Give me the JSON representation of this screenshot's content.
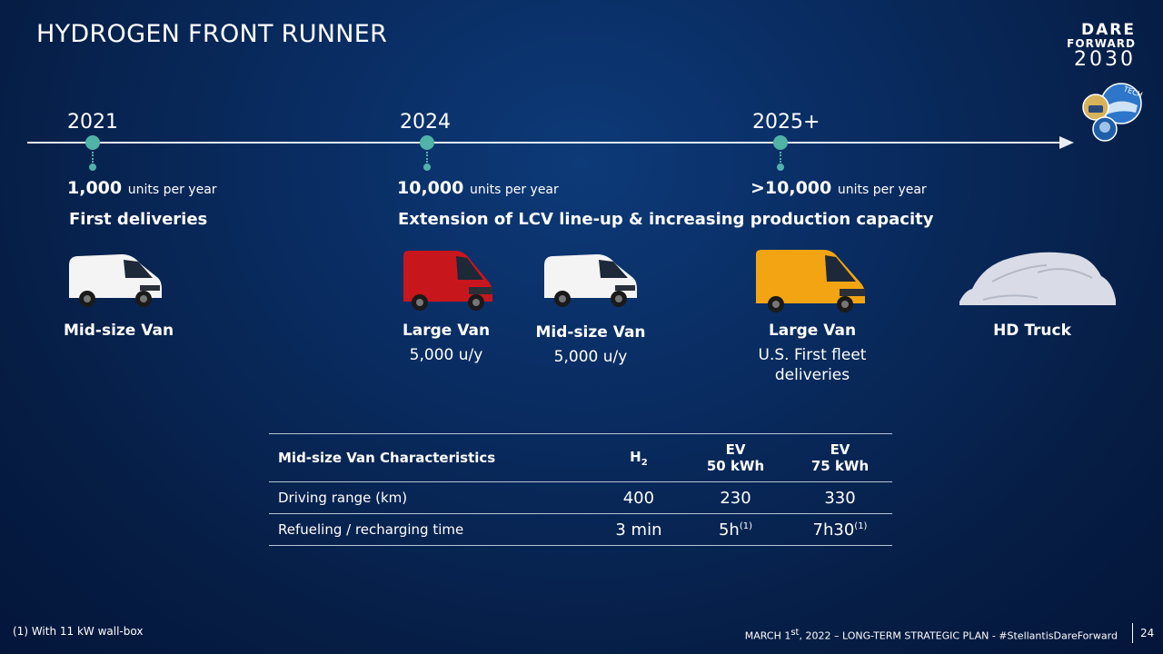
{
  "title": "HYDROGEN FRONT RUNNER",
  "logo": {
    "line1": "DARE",
    "line2": "FORWARD",
    "line3": "2030",
    "badge_text": "TECH"
  },
  "timeline": [
    {
      "year": "2021",
      "units_value": "1,000",
      "units_label": "units per year",
      "headline": "First deliveries"
    },
    {
      "year": "2024",
      "units_value": "10,000",
      "units_label": "units per year",
      "headline": "Extension of LCV line-up & increasing production capacity"
    },
    {
      "year": "2025+",
      "units_value": ">10,000",
      "units_label": "units per year",
      "headline": ""
    }
  ],
  "vehicles": [
    {
      "label": "Mid-size Van",
      "sub": "",
      "color": "#f4f4f4"
    },
    {
      "label": "Large Van",
      "sub": "5,000 u/y",
      "color": "#c8161d"
    },
    {
      "label": "Mid-size Van",
      "sub": "5,000 u/y",
      "color": "#f4f4f4"
    },
    {
      "label": "Large Van",
      "sub": "U.S. First fleet deliveries",
      "sub1": "U.S. First fleet",
      "sub2": "deliveries",
      "color": "#f2a413"
    },
    {
      "label": "HD Truck",
      "sub": "",
      "color": "#d9dce6"
    }
  ],
  "table": {
    "header_label": "Mid-size Van Characteristics",
    "col_h2_main": "H",
    "col_h2_sub": "2",
    "col_ev50_line1": "EV",
    "col_ev50_line2": "50 kWh",
    "col_ev75_line1": "EV",
    "col_ev75_line2": "75 kWh",
    "rows": [
      {
        "label": "Driving range (km)",
        "h2": "400",
        "ev50": "230",
        "ev50_sup": "",
        "ev75": "330",
        "ev75_sup": ""
      },
      {
        "label": "Refueling / recharging time",
        "h2": "3 min",
        "ev50": "5h",
        "ev50_sup": "(1)",
        "ev75": "7h30",
        "ev75_sup": "(1)"
      }
    ]
  },
  "footnote": "(1) With 11 kW wall-box",
  "footer": "MARCH 1st, 2022 – LONG-TERM STRATEGIC PLAN - #StellantisDareForward",
  "footer_parts": {
    "pre": "MARCH 1",
    "sup": "st",
    "post": ", 2022 – LONG-TERM STRATEGIC PLAN - #StellantisDareForward"
  },
  "page_number": "24",
  "colors": {
    "accent": "#4fb3a8",
    "background": "#092c61",
    "line": "#e8ecf5"
  }
}
